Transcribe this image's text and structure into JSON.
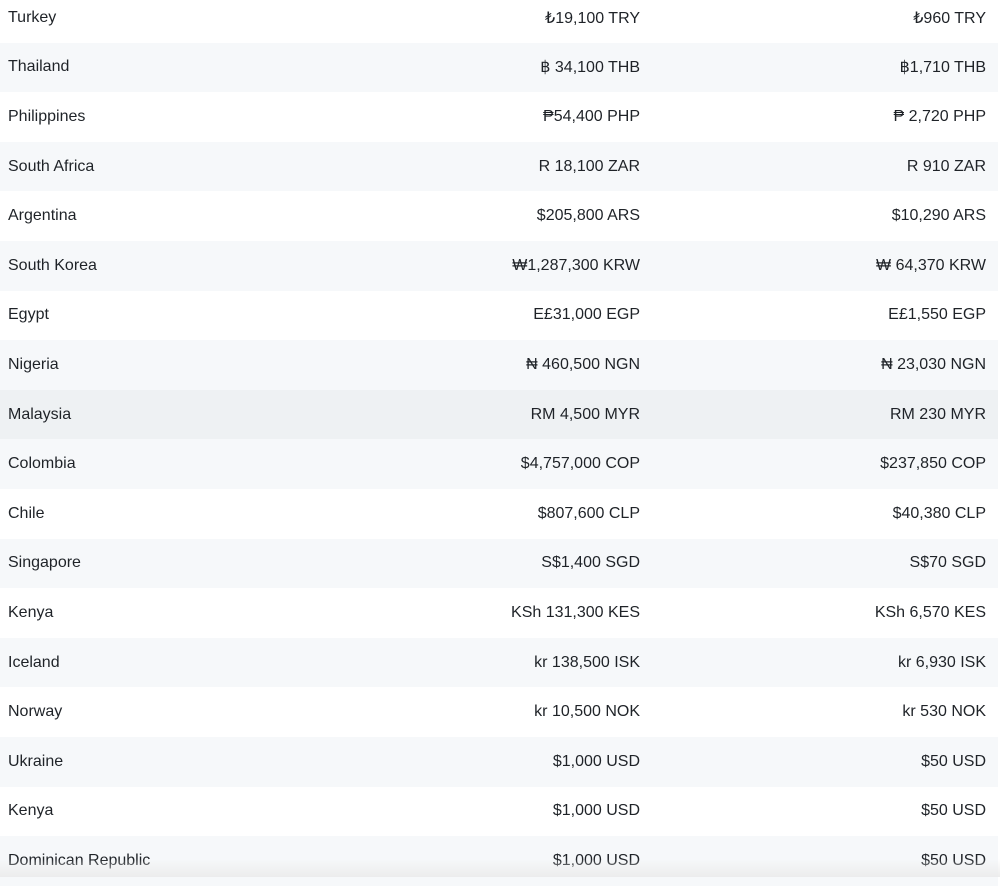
{
  "rows": [
    {
      "country": "Turkey",
      "price": "₺19,100 TRY",
      "price_small": "₺960 TRY"
    },
    {
      "country": "Thailand",
      "price": "฿ 34,100 THB",
      "price_small": "฿1,710 THB"
    },
    {
      "country": "Philippines",
      "price": "₱54,400 PHP",
      "price_small": "₱ 2,720 PHP"
    },
    {
      "country": "South Africa",
      "price": "R 18,100 ZAR",
      "price_small": "R 910 ZAR"
    },
    {
      "country": "Argentina",
      "price": "$205,800 ARS",
      "price_small": "$10,290 ARS"
    },
    {
      "country": "South Korea",
      "price": "₩1,287,300 KRW",
      "price_small": "₩ 64,370 KRW"
    },
    {
      "country": "Egypt",
      "price": "E£31,000 EGP",
      "price_small": "E£1,550 EGP"
    },
    {
      "country": "Nigeria",
      "price": "₦ 460,500 NGN",
      "price_small": "₦ 23,030 NGN"
    },
    {
      "country": "Malaysia",
      "price": "RM 4,500 MYR",
      "price_small": "RM 230 MYR"
    },
    {
      "country": "Colombia",
      "price": "$4,757,000 COP",
      "price_small": "$237,850 COP"
    },
    {
      "country": "Chile",
      "price": "$807,600 CLP",
      "price_small": "$40,380 CLP"
    },
    {
      "country": "Singapore",
      "price": "S$1,400 SGD",
      "price_small": "S$70 SGD"
    },
    {
      "country": "Kenya",
      "price": "KSh 131,300 KES",
      "price_small": "KSh 6,570 KES"
    },
    {
      "country": "Iceland",
      "price": "kr 138,500 ISK",
      "price_small": "kr 6,930 ISK"
    },
    {
      "country": "Norway",
      "price": "kr 10,500 NOK",
      "price_small": "kr 530 NOK"
    },
    {
      "country": "Ukraine",
      "price": "$1,000 USD",
      "price_small": "$50 USD"
    },
    {
      "country": "Kenya",
      "price": "$1,000 USD",
      "price_small": "$50 USD"
    },
    {
      "country": "Dominican Republic",
      "price": "$1,000 USD",
      "price_small": "$50 USD"
    }
  ]
}
